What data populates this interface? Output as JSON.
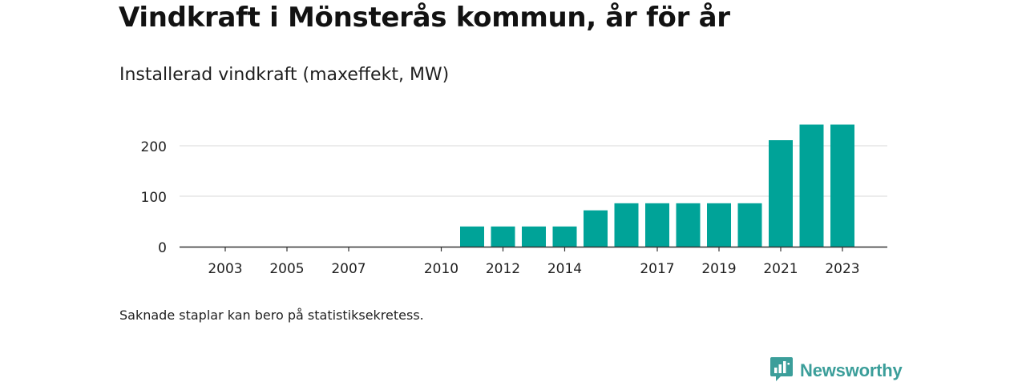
{
  "title": "Vindkraft i Mönsterås kommun, år för år",
  "subtitle": "Installerad vindkraft (maxeffekt, MW)",
  "note": "Saknade staplar kan bero på statistiksekretess.",
  "brand": {
    "name": "Newsworthy",
    "icon": "newsworthy-logo-icon",
    "color": "#3b9e9a"
  },
  "colors": {
    "bar": "#00a398",
    "grid": "#d9d9d9",
    "axis": "#333333",
    "text": "#1f1f1f"
  },
  "chart_data": {
    "type": "bar",
    "title": "Vindkraft i Mönsterås kommun, år för år",
    "subtitle": "Installerad vindkraft (maxeffekt, MW)",
    "categories": [
      "2003",
      "2004",
      "2005",
      "2006",
      "2007",
      "2008",
      "2009",
      "2010",
      "2011",
      "2012",
      "2013",
      "2014",
      "2015",
      "2016",
      "2017",
      "2018",
      "2019",
      "2020",
      "2021",
      "2022",
      "2023"
    ],
    "x_tick_labels": [
      "2003",
      "2005",
      "2007",
      "2010",
      "2012",
      "2014",
      "2017",
      "2019",
      "2021",
      "2023"
    ],
    "values": [
      0,
      0,
      0,
      0,
      0,
      0,
      0,
      0,
      40,
      40,
      40,
      40,
      72,
      86,
      86,
      86,
      86,
      86,
      211,
      242,
      242
    ],
    "y_ticks": [
      0,
      100,
      200
    ],
    "ylim": [
      0,
      250
    ],
    "grid": true,
    "legend": "none"
  }
}
